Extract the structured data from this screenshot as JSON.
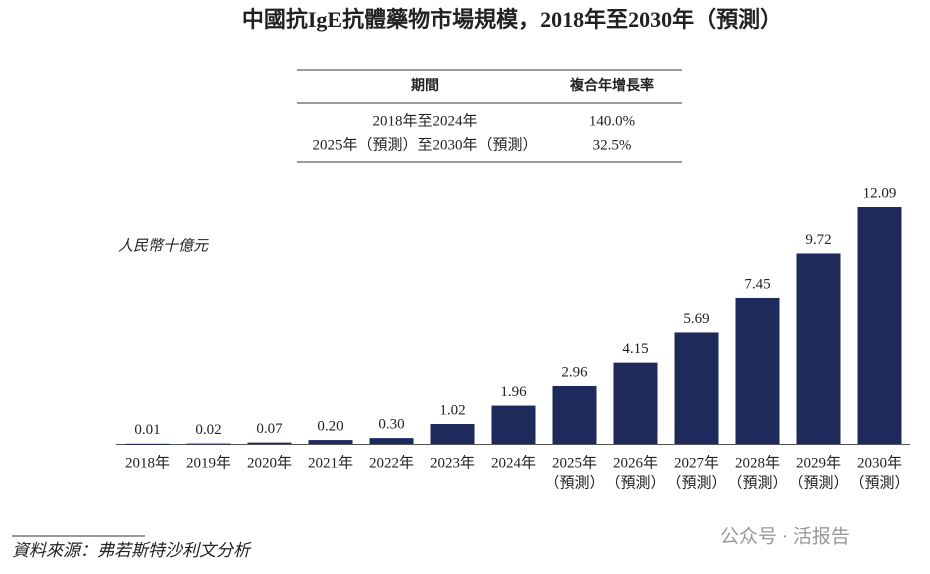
{
  "table": {
    "header": [
      "期間",
      "複合年增長率"
    ],
    "rows": [
      [
        "2018年至2024年",
        "140.0%"
      ],
      [
        "2025年（預測）至2030年（預測）",
        "32.5%"
      ]
    ]
  },
  "chart_data": {
    "type": "bar",
    "title": "中國抗IgE抗體藥物市場規模，2018年至2030年（預測）",
    "y_label": "人民幣十億元",
    "categories": [
      [
        "2018年"
      ],
      [
        "2019年"
      ],
      [
        "2020年"
      ],
      [
        "2021年"
      ],
      [
        "2022年"
      ],
      [
        "2023年"
      ],
      [
        "2024年"
      ],
      [
        "2025年",
        "（預測）"
      ],
      [
        "2026年",
        "（預測）"
      ],
      [
        "2027年",
        "（預測）"
      ],
      [
        "2028年",
        "（預測）"
      ],
      [
        "2029年",
        "（預測）"
      ],
      [
        "2030年",
        "（預測）"
      ]
    ],
    "values": [
      0.01,
      0.02,
      0.07,
      0.2,
      0.3,
      1.02,
      1.96,
      2.96,
      4.15,
      5.69,
      7.45,
      9.72,
      12.09
    ],
    "value_labels": [
      "0.01",
      "0.02",
      "0.07",
      "0.20",
      "0.30",
      "1.02",
      "1.96",
      "2.96",
      "4.15",
      "5.69",
      "7.45",
      "9.72",
      "12.09"
    ],
    "color": "#1f2a5c",
    "ylim": [
      0,
      12.09
    ],
    "source": "資料來源：弗若斯特沙利文分析",
    "watermark": "公众号 · 活报告"
  }
}
